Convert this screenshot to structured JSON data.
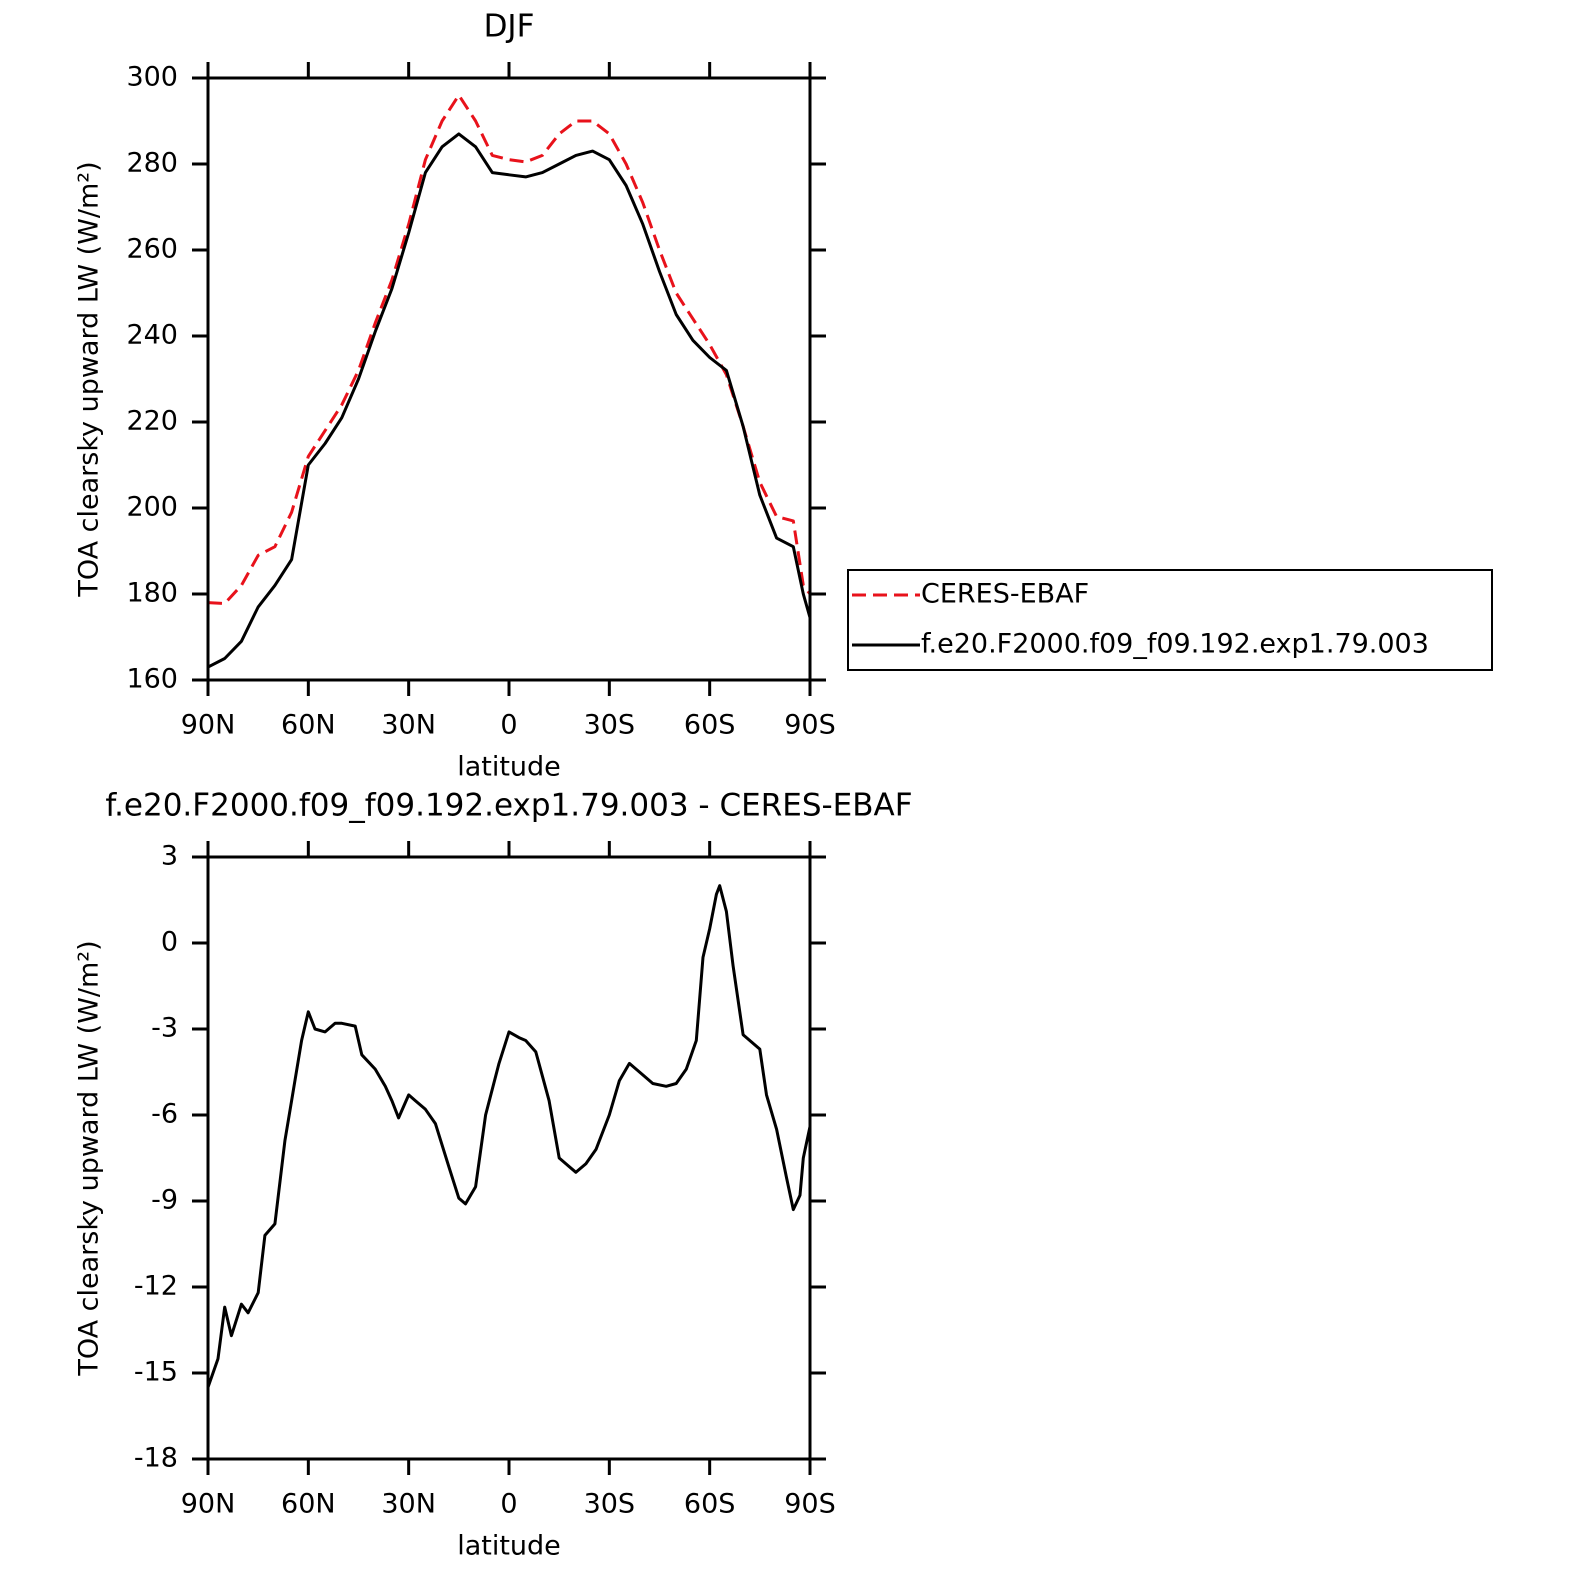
{
  "chart_data": [
    {
      "type": "line",
      "title": "DJF",
      "x_label": "latitude",
      "y_label": "TOA clearsky upward LW (W/m²)",
      "legend": "right",
      "x": [
        90,
        85,
        80,
        75,
        70,
        65,
        60,
        55,
        50,
        45,
        40,
        35,
        30,
        25,
        20,
        15,
        10,
        5,
        0,
        -5,
        -10,
        -15,
        -20,
        -25,
        -30,
        -35,
        -40,
        -45,
        -50,
        -55,
        -60,
        -65,
        -70,
        -75,
        -80,
        -85,
        -88,
        -90
      ],
      "series": [
        {
          "name": "CERES-EBAF",
          "color": "#e8121b",
          "style": "dashed",
          "values": [
            178,
            177.8,
            182,
            189,
            191,
            199,
            212,
            218,
            224,
            232,
            243,
            253,
            266,
            281,
            290,
            296,
            290,
            282,
            281,
            280.5,
            282,
            287,
            290,
            290,
            287,
            280,
            271,
            260,
            250,
            244,
            238,
            231,
            219,
            206,
            198,
            197,
            182,
            180
          ]
        },
        {
          "name": "f.e20.F2000.f09_f09.192.exp1.79.003",
          "color": "#000000",
          "style": "solid",
          "values": [
            163,
            165,
            169,
            177,
            182,
            188,
            210,
            215,
            221,
            230,
            241,
            251,
            264,
            278,
            284,
            287,
            284,
            278,
            277.5,
            277,
            278,
            280,
            282,
            283,
            281,
            275,
            266,
            255,
            245,
            239,
            235,
            232,
            219,
            203,
            193,
            191,
            180,
            174.5
          ]
        }
      ],
      "xlim": [
        90,
        -90
      ],
      "xticks": [
        {
          "value": 90,
          "label": "90N"
        },
        {
          "value": 60,
          "label": "60N"
        },
        {
          "value": 30,
          "label": "30N"
        },
        0,
        {
          "value": -30,
          "label": "30S"
        },
        {
          "value": -60,
          "label": "60S"
        },
        {
          "value": -90,
          "label": "90S"
        }
      ],
      "ylim": [
        160,
        300
      ],
      "yticks": [
        160,
        180,
        200,
        220,
        240,
        260,
        280,
        300
      ]
    },
    {
      "type": "line",
      "title": "f.e20.F2000.f09_f09.192.exp1.79.003 - CERES-EBAF",
      "x_label": "latitude",
      "y_label": "TOA clearsky upward LW (W/m²)",
      "x": [
        90,
        87,
        85,
        83,
        80,
        78,
        75,
        73,
        70,
        67,
        65,
        62,
        60,
        58,
        55,
        52,
        50,
        46,
        44,
        40,
        37,
        35,
        33,
        30,
        28,
        25,
        22,
        18,
        15,
        13,
        10,
        7,
        3,
        0,
        -3,
        -5,
        -8,
        -12,
        -15,
        -18,
        -20,
        -23,
        -26,
        -30,
        -33,
        -36,
        -40,
        -43,
        -47,
        -50,
        -53,
        -56,
        -58,
        -60,
        -62,
        -63,
        -65,
        -67,
        -70,
        -75,
        -77,
        -80,
        -83,
        -85,
        -87,
        -88,
        -90
      ],
      "series": [
        {
          "color": "#000000",
          "style": "solid",
          "values": [
            -15.5,
            -14.5,
            -12.7,
            -13.7,
            -12.6,
            -12.9,
            -12.2,
            -10.2,
            -9.8,
            -6.9,
            -5.5,
            -3.4,
            -2.4,
            -3.0,
            -3.1,
            -2.8,
            -2.8,
            -2.9,
            -3.9,
            -4.4,
            -5.0,
            -5.5,
            -6.1,
            -5.3,
            -5.5,
            -5.8,
            -6.3,
            -7.8,
            -8.9,
            -9.1,
            -8.5,
            -6.0,
            -4.2,
            -3.1,
            -3.3,
            -3.4,
            -3.8,
            -5.5,
            -7.5,
            -7.8,
            -8.0,
            -7.7,
            -7.2,
            -6.0,
            -4.8,
            -4.2,
            -4.6,
            -4.9,
            -5.0,
            -4.9,
            -4.4,
            -3.4,
            -0.5,
            0.5,
            1.7,
            2.0,
            1.1,
            -0.8,
            -3.2,
            -3.7,
            -5.3,
            -6.5,
            -8.2,
            -9.3,
            -8.8,
            -7.5,
            -6.4
          ]
        }
      ],
      "xlim": [
        90,
        -90
      ],
      "xticks": [
        {
          "value": 90,
          "label": "90N"
        },
        {
          "value": 60,
          "label": "60N"
        },
        {
          "value": 30,
          "label": "30N"
        },
        0,
        {
          "value": -30,
          "label": "30S"
        },
        {
          "value": -60,
          "label": "60S"
        },
        {
          "value": -90,
          "label": "90S"
        }
      ],
      "ylim": [
        -18,
        3
      ],
      "yticks": [
        -18,
        -15,
        -12,
        -9,
        -6,
        -3,
        0,
        3
      ]
    }
  ]
}
